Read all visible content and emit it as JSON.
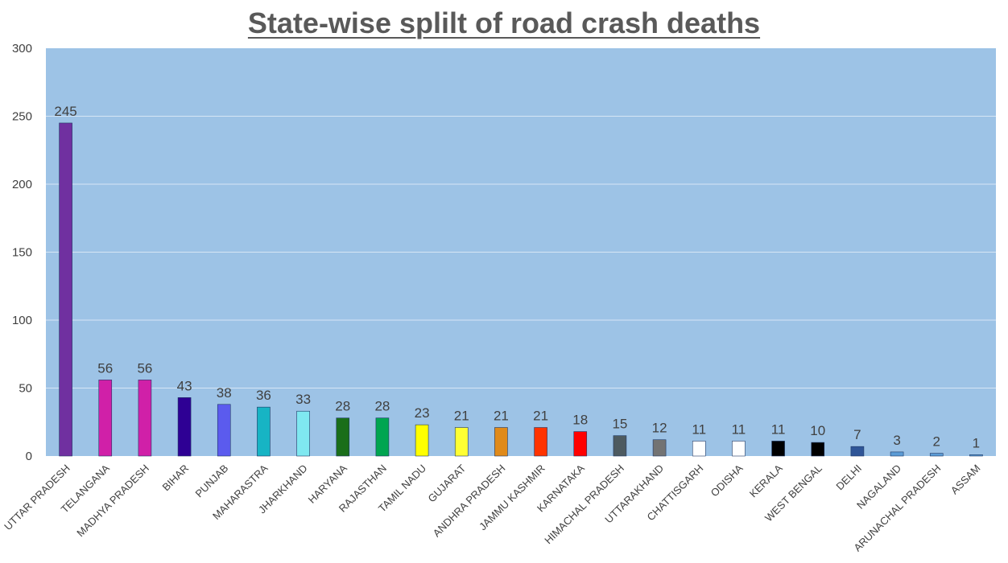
{
  "chart_data": {
    "type": "bar",
    "title": "State-wise  splilt of road crash deaths",
    "xlabel": "",
    "ylabel": "",
    "ylim": [
      0,
      300
    ],
    "yticks": [
      0,
      50,
      100,
      150,
      200,
      250,
      300
    ],
    "grid": true,
    "legend": "none",
    "plot_background": "#9DC3E6",
    "categories": [
      "UTTAR PRADESH",
      "TELANGANA",
      "MADHYA PRADESH",
      "BIHAR",
      "PUNJAB",
      "MAHARASTRA",
      "JHARKHAND",
      "HARYANA",
      "RAJASTHAN",
      "TAMIL NADU",
      "GUJARAT",
      "ANDHRA PRADESH",
      "JAMMU KASHMIR",
      "KARNATAKA",
      "HIMACHAL PRADESH",
      "UTTARAKHAND",
      "CHATTISGARH",
      "ODISHA",
      "KERALA",
      "WEST BENGAL",
      "DELHI",
      "NAGALAND",
      "ARUNACHAL PRADESH",
      "ASSAM"
    ],
    "values": [
      245,
      56,
      56,
      43,
      38,
      36,
      33,
      28,
      28,
      23,
      21,
      21,
      21,
      18,
      15,
      12,
      11,
      11,
      11,
      10,
      7,
      3,
      2,
      1
    ],
    "colors": [
      "#7030A0",
      "#D020A8",
      "#D020A8",
      "#2E0094",
      "#5B5BEE",
      "#17B4C4",
      "#7FE8F0",
      "#1A6E1A",
      "#00A550",
      "#FFFF00",
      "#FFFF33",
      "#E08A1A",
      "#FF3300",
      "#FF0000",
      "#4D5A60",
      "#737373",
      "#FFFFFF",
      "#FFFFFF",
      "#000000",
      "#000000",
      "#2F5597",
      "#5B9BD5",
      "#5B9BD5",
      "#5B9BD5"
    ]
  }
}
